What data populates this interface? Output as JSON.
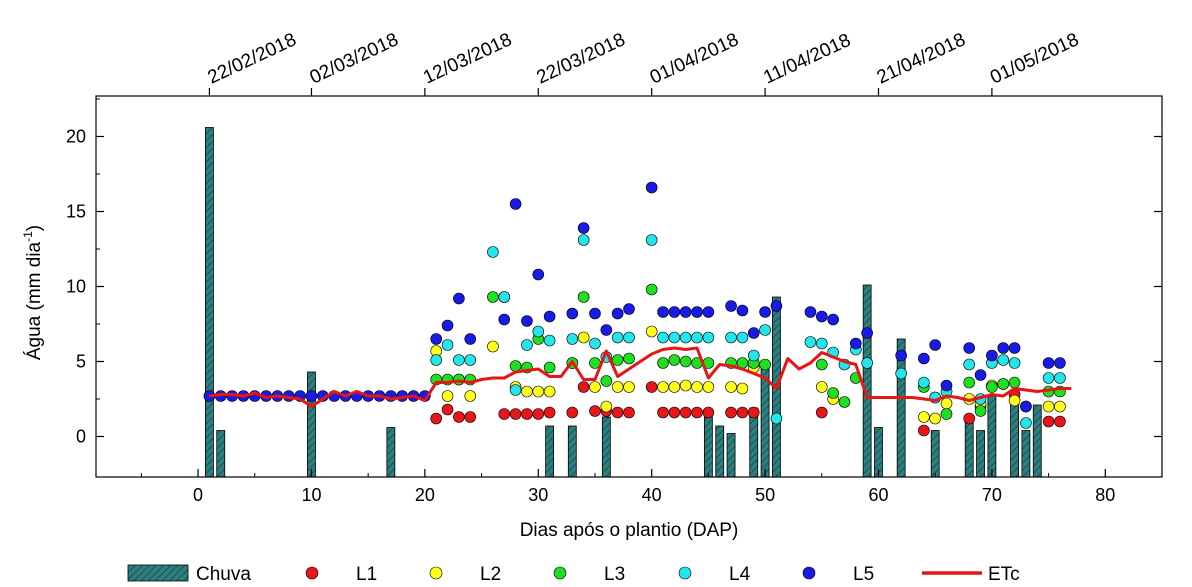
{
  "chart_data": {
    "type": "bar+scatter+line",
    "xlabel": "Dias após o plantio (DAP)",
    "ylabel": "Água (mm dia",
    "ylabel_sup": "-1",
    "ylabel_close": ")",
    "xlim": [
      -9,
      85
    ],
    "ylim": [
      -2.7,
      22.7
    ],
    "xticks": [
      0,
      10,
      20,
      30,
      40,
      50,
      60,
      70,
      80
    ],
    "yticks": [
      0,
      5,
      10,
      15,
      20
    ],
    "top_axis": {
      "ticks": [
        1,
        10,
        20,
        30,
        40,
        50,
        60,
        70
      ],
      "labels": [
        "22/02/2018",
        "02/03/2018",
        "12/03/2018",
        "22/03/2018",
        "01/04/2018",
        "11/04/2018",
        "21/04/2018",
        "01/05/2018"
      ]
    },
    "colors": {
      "chuva": "#2d7f7f",
      "L1": "#e8151b",
      "L2": "#ffff1a",
      "L3": "#1ee01e",
      "L4": "#22e6ec",
      "L5": "#1a1ae6",
      "ETc": "#e81515"
    },
    "legend": {
      "position": "bottom",
      "items": [
        {
          "key": "chuva",
          "label": "Chuva",
          "kind": "bar"
        },
        {
          "key": "L1",
          "label": "L1",
          "kind": "marker"
        },
        {
          "key": "L2",
          "label": "L2",
          "kind": "marker"
        },
        {
          "key": "L3",
          "label": "L3",
          "kind": "marker"
        },
        {
          "key": "L4",
          "label": "L4",
          "kind": "marker"
        },
        {
          "key": "L5",
          "label": "L5",
          "kind": "marker"
        },
        {
          "key": "ETc",
          "label": "ETc",
          "kind": "line"
        }
      ]
    },
    "chuva": [
      [
        1,
        20.6
      ],
      [
        2,
        0.4
      ],
      [
        10,
        4.3
      ],
      [
        17,
        0.6
      ],
      [
        31,
        0.7
      ],
      [
        33,
        0.7
      ],
      [
        36,
        1.3
      ],
      [
        45,
        1.3
      ],
      [
        46,
        0.7
      ],
      [
        47,
        0.2
      ],
      [
        49,
        1.9
      ],
      [
        50,
        4.5
      ],
      [
        51,
        9.3
      ],
      [
        59,
        10.1
      ],
      [
        60,
        0.6
      ],
      [
        62,
        6.5
      ],
      [
        65,
        0.4
      ],
      [
        68,
        1.3
      ],
      [
        69,
        0.4
      ],
      [
        70,
        2.7
      ],
      [
        72,
        2.4
      ],
      [
        73,
        0.4
      ],
      [
        74,
        2.1
      ]
    ],
    "L_base": {
      "x": [
        1,
        2,
        3,
        4,
        5,
        6,
        7,
        8,
        9,
        10,
        11,
        12,
        13,
        14,
        15,
        16,
        17,
        18,
        19,
        20
      ],
      "y": [
        2.7,
        2.7,
        2.7,
        2.7,
        2.7,
        2.7,
        2.7,
        2.7,
        2.7,
        2.7,
        2.7,
        2.7,
        2.7,
        2.7,
        2.7,
        2.7,
        2.7,
        2.7,
        2.7,
        2.7
      ]
    },
    "series": [
      {
        "name": "L1",
        "x": [
          21,
          22,
          23,
          24,
          27,
          28,
          29,
          30,
          31,
          33,
          34,
          35,
          36,
          37,
          38,
          40,
          41,
          42,
          43,
          44,
          45,
          47,
          48,
          49,
          55,
          64,
          68,
          69,
          72,
          73,
          75,
          76
        ],
        "y": [
          1.2,
          1.8,
          1.3,
          1.3,
          1.5,
          1.5,
          1.5,
          1.5,
          1.6,
          1.6,
          3.3,
          1.7,
          1.7,
          1.6,
          1.6,
          3.3,
          1.6,
          1.6,
          1.6,
          1.6,
          1.6,
          1.6,
          1.6,
          1.6,
          1.6,
          0.4,
          1.2,
          2.0,
          2.8,
          2.0,
          1.0,
          1.0
        ]
      },
      {
        "name": "L2",
        "x": [
          21,
          22,
          23,
          24,
          26,
          28,
          29,
          30,
          31,
          33,
          34,
          35,
          36,
          37,
          38,
          40,
          41,
          42,
          43,
          44,
          45,
          47,
          48,
          49,
          55,
          56,
          64,
          65,
          66,
          68,
          69,
          70,
          71,
          72,
          75,
          76
        ],
        "y": [
          5.7,
          2.7,
          3.8,
          2.7,
          6.0,
          3.3,
          3.0,
          3.0,
          3.0,
          4.9,
          6.6,
          3.3,
          2.0,
          3.3,
          3.3,
          7.0,
          3.3,
          3.3,
          3.4,
          3.3,
          3.3,
          3.3,
          3.2,
          4.6,
          3.3,
          2.5,
          1.3,
          1.2,
          2.2,
          2.5,
          2.2,
          3.4,
          3.5,
          2.4,
          2.0,
          2.0
        ]
      },
      {
        "name": "L3",
        "x": [
          21,
          22,
          23,
          24,
          26,
          27,
          28,
          29,
          30,
          31,
          33,
          34,
          35,
          36,
          37,
          38,
          40,
          41,
          42,
          43,
          44,
          45,
          47,
          48,
          49,
          50,
          55,
          56,
          57,
          58,
          64,
          65,
          66,
          68,
          69,
          70,
          71,
          72,
          75,
          76
        ],
        "y": [
          3.8,
          3.8,
          3.8,
          3.8,
          9.3,
          9.3,
          4.7,
          4.6,
          6.5,
          4.6,
          4.9,
          9.3,
          4.9,
          3.7,
          5.1,
          5.2,
          9.8,
          4.9,
          5.1,
          5.0,
          4.9,
          4.9,
          4.9,
          4.9,
          4.9,
          4.8,
          4.8,
          2.9,
          2.3,
          3.9,
          3.3,
          2.6,
          1.5,
          3.6,
          1.7,
          3.3,
          3.5,
          3.6,
          3.0,
          3.0
        ]
      },
      {
        "name": "L4",
        "x": [
          21,
          22,
          23,
          24,
          26,
          27,
          28,
          29,
          30,
          31,
          33,
          34,
          35,
          36,
          37,
          38,
          40,
          41,
          42,
          43,
          44,
          45,
          47,
          48,
          49,
          50,
          51,
          54,
          55,
          56,
          57,
          58,
          59,
          62,
          64,
          65,
          66,
          68,
          69,
          70,
          71,
          72,
          73,
          75,
          76
        ],
        "y": [
          5.1,
          6.1,
          5.1,
          5.1,
          12.3,
          9.3,
          3.1,
          6.1,
          7.0,
          6.4,
          6.5,
          13.1,
          6.2,
          5.3,
          6.6,
          6.6,
          13.1,
          6.6,
          6.6,
          6.6,
          6.6,
          6.6,
          6.6,
          6.6,
          5.4,
          7.1,
          1.2,
          6.3,
          6.2,
          5.6,
          4.8,
          5.8,
          4.9,
          4.2,
          3.6,
          2.6,
          3.0,
          4.8,
          2.5,
          4.9,
          5.1,
          4.9,
          0.9,
          3.9,
          3.9
        ]
      },
      {
        "name": "L5",
        "x": [
          21,
          22,
          23,
          24,
          27,
          28,
          29,
          30,
          31,
          33,
          34,
          35,
          36,
          37,
          38,
          40,
          41,
          42,
          43,
          44,
          45,
          47,
          48,
          49,
          50,
          51,
          54,
          55,
          56,
          58,
          59,
          62,
          64,
          65,
          66,
          68,
          69,
          70,
          71,
          72,
          73,
          75,
          76
        ],
        "y": [
          6.5,
          7.4,
          9.2,
          6.5,
          7.8,
          15.5,
          7.7,
          10.8,
          8.0,
          8.2,
          13.9,
          8.2,
          7.1,
          8.2,
          8.5,
          16.6,
          8.3,
          8.3,
          8.3,
          8.3,
          8.3,
          8.7,
          8.4,
          6.9,
          8.3,
          8.7,
          8.3,
          8.0,
          7.8,
          6.2,
          6.9,
          5.4,
          5.2,
          6.1,
          3.4,
          5.9,
          4.1,
          5.4,
          5.9,
          5.9,
          2.0,
          4.9,
          4.9
        ]
      }
    ],
    "etc": {
      "name": "ETc",
      "x": [
        1,
        2,
        3,
        4,
        5,
        6,
        7,
        8,
        9,
        10,
        11,
        12,
        13,
        14,
        15,
        16,
        17,
        18,
        19,
        20,
        21,
        22,
        23,
        24,
        25,
        26,
        27,
        28,
        29,
        30,
        31,
        32,
        33,
        34,
        35,
        36,
        37,
        38,
        39,
        40,
        41,
        42,
        43,
        44,
        45,
        46,
        47,
        48,
        49,
        50,
        51,
        52,
        53,
        54,
        55,
        56,
        57,
        58,
        59,
        60,
        61,
        62,
        63,
        64,
        65,
        66,
        67,
        68,
        69,
        70,
        71,
        72,
        73,
        74,
        75,
        76,
        77
      ],
      "y": [
        2.7,
        2.8,
        2.8,
        2.7,
        2.9,
        2.6,
        2.7,
        2.6,
        2.5,
        2.0,
        2.5,
        3.0,
        2.7,
        3.0,
        2.7,
        2.7,
        2.5,
        2.6,
        2.7,
        2.4,
        3.6,
        3.6,
        3.7,
        3.6,
        3.8,
        3.9,
        3.9,
        4.3,
        4.4,
        4.5,
        4.0,
        4.0,
        5.0,
        3.8,
        3.8,
        5.7,
        4.0,
        4.5,
        5.0,
        5.5,
        5.8,
        5.9,
        5.8,
        5.9,
        3.9,
        4.8,
        4.7,
        4.5,
        4.2,
        3.9,
        3.2,
        5.2,
        4.5,
        4.9,
        5.6,
        5.3,
        5.0,
        4.8,
        2.6,
        2.6,
        2.6,
        2.6,
        2.6,
        2.5,
        2.4,
        2.7,
        2.6,
        2.4,
        2.6,
        2.8,
        2.7,
        3.2,
        3.1,
        3.0,
        3.1,
        3.2,
        3.2
      ]
    }
  }
}
